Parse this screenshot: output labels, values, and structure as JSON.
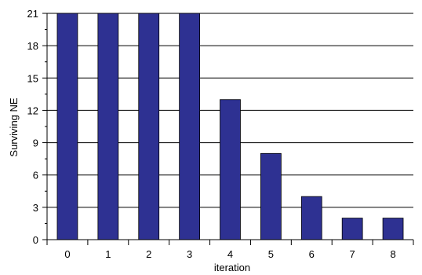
{
  "chart_data": {
    "type": "bar",
    "categories": [
      "0",
      "1",
      "2",
      "3",
      "4",
      "5",
      "6",
      "7",
      "8"
    ],
    "values": [
      21,
      21,
      21,
      21,
      13,
      8,
      4,
      2,
      2
    ],
    "title": "",
    "xlabel": "iteration",
    "ylabel": "Surviving NE",
    "ylim": [
      0,
      21
    ],
    "yticks": [
      0,
      3,
      6,
      9,
      12,
      15,
      18,
      21
    ],
    "grid": true,
    "bar_color": "#2E3192",
    "grid_color": "#000000"
  }
}
